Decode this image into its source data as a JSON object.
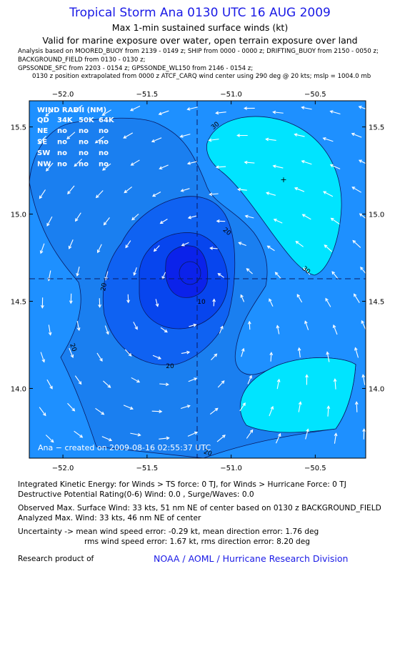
{
  "header": {
    "title": "Tropical Storm Ana 0130 UTC 16 AUG 2009",
    "subtitle": "Max 1-min sustained surface winds (kt)",
    "validity": "Valid for marine exposure over water, open terrain exposure over land",
    "meta_lines": [
      "Analysis based on  MOORED_BUOY from 2139 - 0149 z;  SHIP from 0000 - 0000 z;  DRIFTING_BUOY from 2150 - 0050 z;",
      "BACKGROUND_FIELD from 0130 - 0130 z;",
      "GPSSONDE_SFC from 2203 - 0154 z;  GPSSONDE_WL150 from 2146 - 0154 z;",
      "0130 z position extrapolated from 0000 z ATCF_CARQ wind center using 290 deg @ 20 kts; mslp = 1004.0 mb"
    ]
  },
  "map": {
    "lon_ticks": [
      "−52.0",
      "−51.5",
      "−51.0",
      "−50.5"
    ],
    "lat_ticks": [
      "15.5",
      "15.0",
      "14.5",
      "14.0"
    ],
    "lon_range": [
      -52.2,
      -50.2
    ],
    "lat_range": [
      13.6,
      15.65
    ],
    "center": {
      "lon": -51.2,
      "lat": 14.58
    },
    "contour_labels": [
      "30",
      "20",
      "20",
      "20",
      "30",
      "10",
      "20",
      "20"
    ],
    "colors": {
      "base": "#1e90ff",
      "lt30": "#1a7ff0",
      "lt20": "#0f62f2",
      "lt10": "#0745ee",
      "lt5": "#0b22ea",
      "hi30": "#00e4ff",
      "line": "#0a1a60",
      "arrow": "#ffffff"
    },
    "wind_radii": {
      "title": "WIND RADII (NM)",
      "header": [
        "QD",
        "34K",
        "50K",
        "64K"
      ],
      "rows": [
        [
          "NE",
          "no",
          "no",
          "no"
        ],
        [
          "SE",
          "no",
          "no",
          "no"
        ],
        [
          "SW",
          "no",
          "no",
          "no"
        ],
        [
          "NW",
          "no",
          "no",
          "no"
        ]
      ]
    },
    "credit": "Ana − created on 2009-08-16 02:55:37 UTC"
  },
  "info": {
    "ike": "Integrated Kinetic Energy:  for Winds > TS force: 0 TJ,  for Winds > Hurricane Force: 0 TJ",
    "dpr": "Destructive Potential Rating(0-6)   Wind: 0.0 , Surge/Waves: 0.0",
    "obs_max": "Observed Max. Surface Wind: 33 kts, 51 nm NE of center based on 0130 z BACKGROUND_FIELD",
    "ana_max": "Analyzed Max. Wind: 33 kts, 46 nm NE of center",
    "unc1": "Uncertainty -> mean wind speed error:  -0.29 kt,   mean direction error: 1.76 deg",
    "unc2": "rms wind speed error: 1.67 kt,   rms direction error: 8.20 deg",
    "research": "Research product of",
    "noaa": "NOAA / AOML / Hurricane Research Division"
  }
}
